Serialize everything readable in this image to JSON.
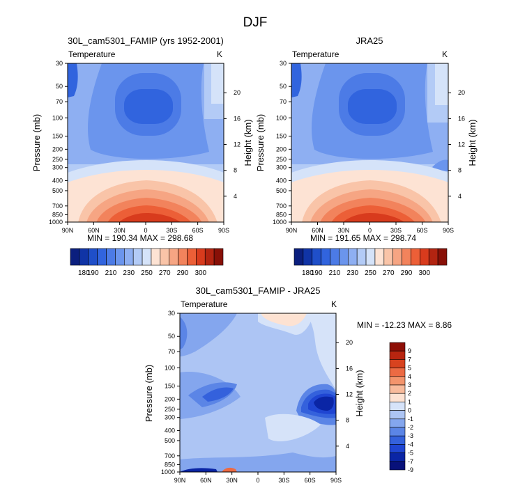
{
  "figure": {
    "title": "DJF"
  },
  "palette": {
    "temperature": [
      "#0b1f7e",
      "#1034a6",
      "#1f4fc9",
      "#3164de",
      "#4c7be6",
      "#6b95ed",
      "#8eaff2",
      "#b3cbf6",
      "#d5e3f9",
      "#fde3d4",
      "#f9c4a8",
      "#f6a583",
      "#f2835c",
      "#ec5f37",
      "#d83b1d",
      "#b22411",
      "#881007"
    ],
    "difference": [
      "#08117a",
      "#0a25a5",
      "#1f45d2",
      "#3461dc",
      "#5b85e6",
      "#84a6ee",
      "#adc5f4",
      "#d6e3f9",
      "#fde2d2",
      "#f8bb9c",
      "#f3946c",
      "#ec6a43",
      "#d8431f",
      "#b82510",
      "#8e0f06"
    ]
  },
  "chart_data": [
    {
      "id": "model",
      "type": "contour",
      "title": "30L_cam5301_FAMIP (yrs 1952-2001)",
      "variable": "Temperature",
      "units": "K",
      "ylabel": "Pressure (mb)",
      "ylabel_right": "Height (km)",
      "x_ticks": [
        "90N",
        "60N",
        "30N",
        "0",
        "30S",
        "60S",
        "90S"
      ],
      "y_ticks": [
        "30",
        "50",
        "70",
        "100",
        "150",
        "200",
        "250",
        "300",
        "400",
        "500",
        "700",
        "850",
        "1000"
      ],
      "height_ticks": [
        "20",
        "16",
        "12",
        "8",
        "4"
      ],
      "stats": "MIN = 190.34   MAX = 298.68",
      "levels": [
        "180",
        "190",
        "210",
        "230",
        "250",
        "270",
        "290",
        "300"
      ]
    },
    {
      "id": "obs",
      "type": "contour",
      "title": "JRA25",
      "variable": "Temperature",
      "units": "K",
      "ylabel": "Pressure (mb)",
      "ylabel_right": "Height (km)",
      "x_ticks": [
        "90N",
        "60N",
        "30N",
        "0",
        "30S",
        "60S",
        "90S"
      ],
      "y_ticks": [
        "30",
        "50",
        "70",
        "100",
        "150",
        "200",
        "250",
        "300",
        "400",
        "500",
        "700",
        "850",
        "1000"
      ],
      "height_ticks": [
        "20",
        "16",
        "12",
        "8",
        "4"
      ],
      "stats": "MIN = 191.65   MAX = 298.74",
      "levels": [
        "180",
        "190",
        "210",
        "230",
        "250",
        "270",
        "290",
        "300"
      ]
    },
    {
      "id": "diff",
      "type": "contour",
      "title": "30L_cam5301_FAMIP - JRA25",
      "variable": "Temperature",
      "units": "K",
      "ylabel": "Pressure (mb)",
      "ylabel_right": "Height (km)",
      "x_ticks": [
        "90N",
        "60N",
        "30N",
        "0",
        "30S",
        "60S",
        "90S"
      ],
      "y_ticks": [
        "30",
        "50",
        "70",
        "100",
        "150",
        "200",
        "250",
        "300",
        "400",
        "500",
        "700",
        "850",
        "1000"
      ],
      "height_ticks": [
        "20",
        "16",
        "12",
        "8",
        "4"
      ],
      "stats": "MIN = -12.23   MAX =   8.86",
      "levels": [
        "9",
        "7",
        "5",
        "4",
        "3",
        "2",
        "1",
        "0",
        "-1",
        "-2",
        "-3",
        "-4",
        "-5",
        "-7",
        "-9"
      ]
    }
  ]
}
